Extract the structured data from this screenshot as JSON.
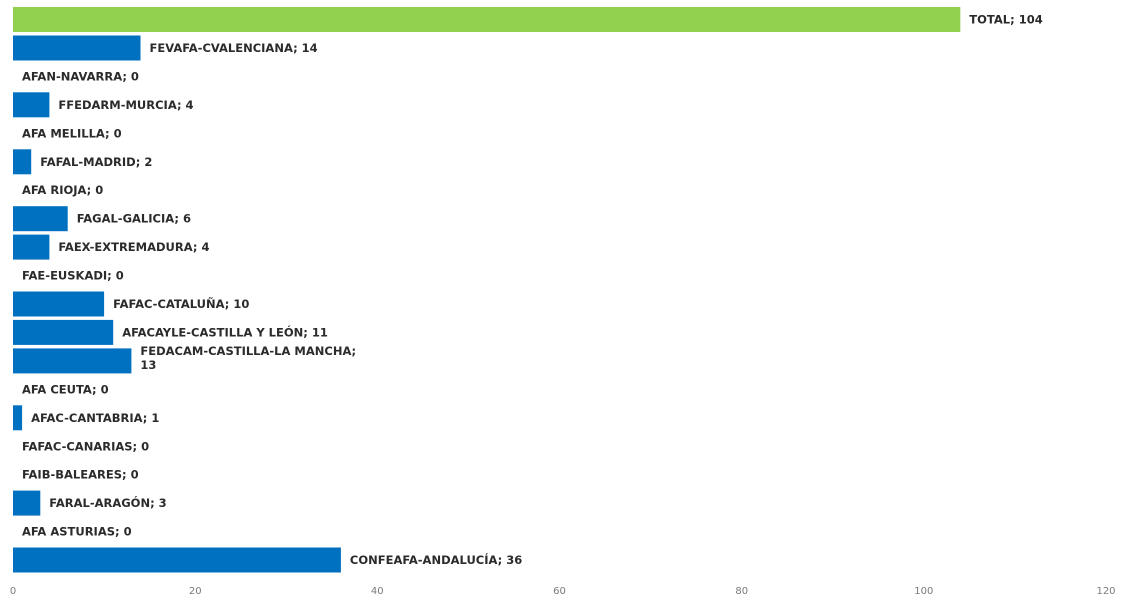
{
  "chart_data": {
    "type": "bar",
    "orientation": "horizontal",
    "categories": [
      "TOTAL",
      "FEVAFA-CVALENCIANA",
      "AFAN-NAVARRA",
      "FFEDARM-MURCIA",
      "AFA MELILLA",
      "FAFAL-MADRID",
      "AFA RIOJA",
      "FAGAL-GALICIA",
      "FAEX-EXTREMADURA",
      "FAE-EUSKADI",
      "FAFAC-CATALUÑA",
      "AFACAYLE-CASTILLA Y LEÓN",
      "FEDACAM-CASTILLA-LA MANCHA",
      "AFA CEUTA",
      "AFAC-CANTABRIA",
      "FAFAC-CANARIAS",
      "FAIB-BALEARES",
      "FARAL-ARAGÓN",
      "AFA ASTURIAS",
      "CONFEAFA-ANDALUCÍA"
    ],
    "values": [
      104,
      14,
      0,
      4,
      0,
      2,
      0,
      6,
      4,
      0,
      10,
      11,
      13,
      0,
      1,
      0,
      0,
      3,
      0,
      36
    ],
    "data_labels": [
      "TOTAL; 104",
      "FEVAFA-CVALENCIANA; 14",
      "AFAN-NAVARRA; 0",
      "FFEDARM-MURCIA; 4",
      "AFA MELILLA; 0",
      "FAFAL-MADRID; 2",
      "AFA RIOJA; 0",
      "FAGAL-GALICIA; 6",
      "FAEX-EXTREMADURA; 4",
      "FAE-EUSKADI; 0",
      "FAFAC-CATALUÑA; 10",
      "AFACAYLE-CASTILLA Y LEÓN; 11",
      "FEDACAM-CASTILLA-LA MANCHA; 13",
      "AFA CEUTA; 0",
      "AFAC-CANTABRIA; 1",
      "FAFAC-CANARIAS; 0",
      "FAIB-BALEARES; 0",
      "FARAL-ARAGÓN; 3",
      "AFA ASTURIAS; 0",
      "CONFEAFA-ANDALUCÍA; 36"
    ],
    "bar_colors": [
      "#92d050",
      "#0070c0",
      "#0070c0",
      "#0070c0",
      "#0070c0",
      "#0070c0",
      "#0070c0",
      "#0070c0",
      "#0070c0",
      "#0070c0",
      "#0070c0",
      "#0070c0",
      "#0070c0",
      "#0070c0",
      "#0070c0",
      "#0070c0",
      "#0070c0",
      "#0070c0",
      "#0070c0",
      "#0070c0"
    ],
    "xlim": [
      0,
      120
    ],
    "x_ticks": [
      0,
      20,
      40,
      60,
      80,
      100,
      120
    ],
    "x_tick_labels": [
      "0",
      "20",
      "40",
      "60",
      "80",
      "100",
      "120"
    ],
    "title": "",
    "xlabel": "",
    "ylabel": "",
    "grid": false,
    "legend": false
  }
}
